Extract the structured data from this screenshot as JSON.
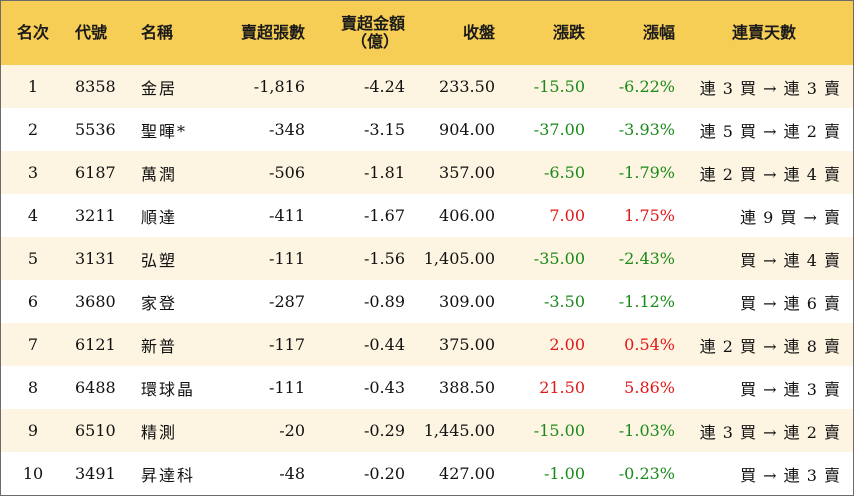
{
  "headers": {
    "rank": "名次",
    "code": "代號",
    "name": "名稱",
    "net_sell_shares": "賣超張數",
    "net_sell_amount_line1": "賣超金額",
    "net_sell_amount_line2": "（億）",
    "close": "收盤",
    "change": "漲跌",
    "change_pct": "漲幅",
    "streak": "連賣天數"
  },
  "colors": {
    "header_bg": "#f7ce55",
    "stripe_bg": "#fdf4e1",
    "negative": "#1a8a1a",
    "positive": "#e01818"
  },
  "rows": [
    {
      "rank": "1",
      "code": "8358",
      "name": "金居",
      "shares": "-1,816",
      "amount": "-4.24",
      "close": "233.50",
      "change": "-15.50",
      "pct": "-6.22%",
      "dir": "neg",
      "streak": "連 3 買 → 連 3 賣"
    },
    {
      "rank": "2",
      "code": "5536",
      "name": "聖暉*",
      "shares": "-348",
      "amount": "-3.15",
      "close": "904.00",
      "change": "-37.00",
      "pct": "-3.93%",
      "dir": "neg",
      "streak": "連 5 買 → 連 2 賣"
    },
    {
      "rank": "3",
      "code": "6187",
      "name": "萬潤",
      "shares": "-506",
      "amount": "-1.81",
      "close": "357.00",
      "change": "-6.50",
      "pct": "-1.79%",
      "dir": "neg",
      "streak": "連 2 買 → 連 4 賣"
    },
    {
      "rank": "4",
      "code": "3211",
      "name": "順達",
      "shares": "-411",
      "amount": "-1.67",
      "close": "406.00",
      "change": "7.00",
      "pct": "1.75%",
      "dir": "pos",
      "streak": "連 9 買 → 賣"
    },
    {
      "rank": "5",
      "code": "3131",
      "name": "弘塑",
      "shares": "-111",
      "amount": "-1.56",
      "close": "1,405.00",
      "change": "-35.00",
      "pct": "-2.43%",
      "dir": "neg",
      "streak": "買 → 連 4 賣"
    },
    {
      "rank": "6",
      "code": "3680",
      "name": "家登",
      "shares": "-287",
      "amount": "-0.89",
      "close": "309.00",
      "change": "-3.50",
      "pct": "-1.12%",
      "dir": "neg",
      "streak": "買 → 連 6 賣"
    },
    {
      "rank": "7",
      "code": "6121",
      "name": "新普",
      "shares": "-117",
      "amount": "-0.44",
      "close": "375.00",
      "change": "2.00",
      "pct": "0.54%",
      "dir": "pos",
      "streak": "連 2 買 → 連 8 賣"
    },
    {
      "rank": "8",
      "code": "6488",
      "name": "環球晶",
      "shares": "-111",
      "amount": "-0.43",
      "close": "388.50",
      "change": "21.50",
      "pct": "5.86%",
      "dir": "pos",
      "streak": "買 → 連 3 賣"
    },
    {
      "rank": "9",
      "code": "6510",
      "name": "精測",
      "shares": "-20",
      "amount": "-0.29",
      "close": "1,445.00",
      "change": "-15.00",
      "pct": "-1.03%",
      "dir": "neg",
      "streak": "連 3 買 → 連 2 賣"
    },
    {
      "rank": "10",
      "code": "3491",
      "name": "昇達科",
      "shares": "-48",
      "amount": "-0.20",
      "close": "427.00",
      "change": "-1.00",
      "pct": "-0.23%",
      "dir": "neg",
      "streak": "買 → 連 3 賣"
    }
  ]
}
